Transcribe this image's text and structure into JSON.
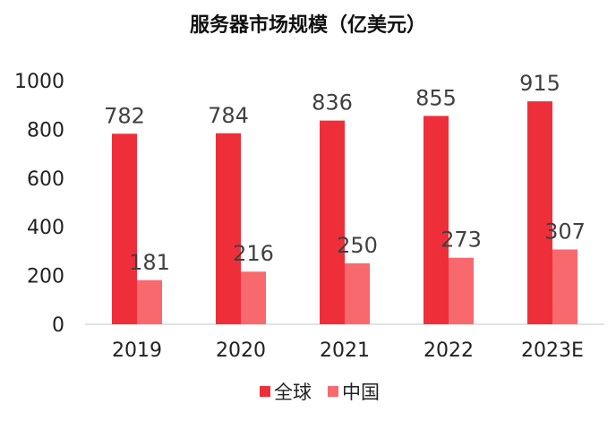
{
  "chart_data": {
    "type": "bar",
    "title": "服务器市场规模（亿美元）",
    "xlabel": "",
    "ylabel": "",
    "categories": [
      "2019",
      "2020",
      "2021",
      "2022",
      "2023E"
    ],
    "series": [
      {
        "name": "全球",
        "color": "#ee2f3a",
        "values": [
          782,
          784,
          836,
          855,
          915
        ]
      },
      {
        "name": "中国",
        "color": "#f8696e",
        "values": [
          181,
          216,
          250,
          273,
          307
        ]
      }
    ],
    "ylim": [
      0,
      1000
    ],
    "yticks": [
      0,
      200,
      400,
      600,
      800,
      1000
    ],
    "grid": false,
    "legend_position": "bottom"
  }
}
